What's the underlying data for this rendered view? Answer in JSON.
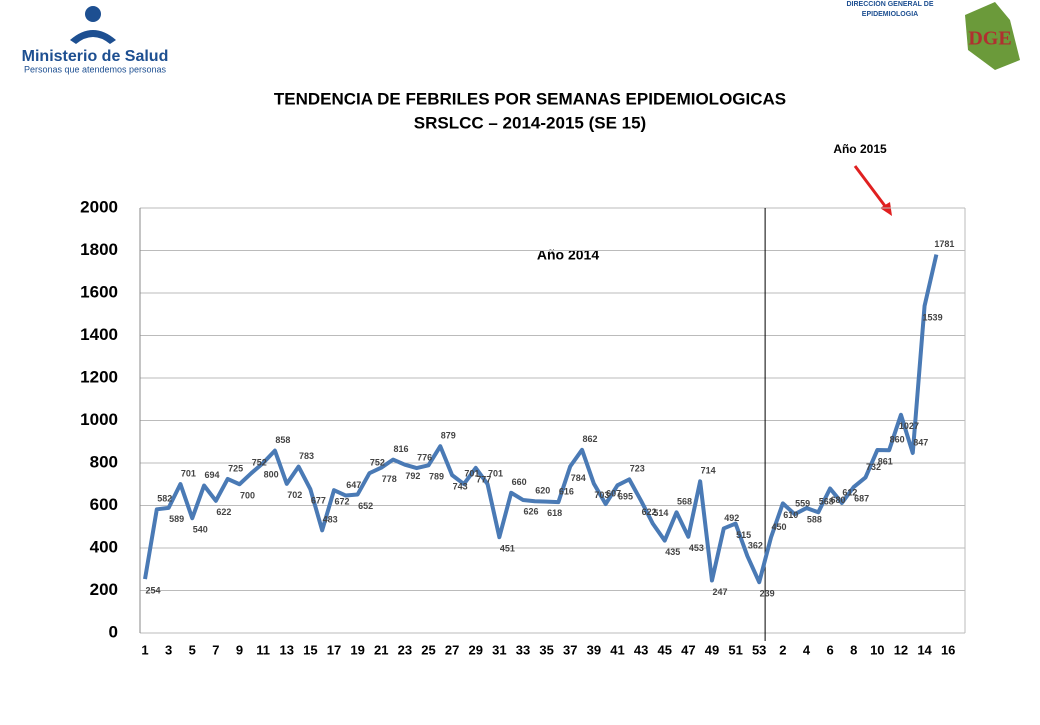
{
  "header": {
    "org": "Ministerio de Salud",
    "tagline": "Personas que atendemos personas",
    "dept": "DIRECCIÓN GENERAL DE EPIDEMIOLOGIA",
    "logo": "DGE"
  },
  "chart_data": {
    "type": "line",
    "title": [
      "TENDENCIA DE FEBRILES POR SEMANAS EPIDEMIOLOGICAS",
      "SRSLCC – 2014-2015 (SE 15)"
    ],
    "annotations": [
      "Año 2014",
      "Año 2015"
    ],
    "categories": [
      "1",
      null,
      "3",
      null,
      "5",
      null,
      "7",
      null,
      "9",
      null,
      "11",
      null,
      "13",
      null,
      "15",
      null,
      "17",
      null,
      "19",
      null,
      "21",
      null,
      "23",
      null,
      "25",
      null,
      "27",
      null,
      "29",
      null,
      "31",
      null,
      "33",
      null,
      "35",
      null,
      "37",
      null,
      "39",
      null,
      "41",
      null,
      "43",
      null,
      "45",
      null,
      "47",
      null,
      "49",
      null,
      "51",
      null,
      "53",
      null,
      "2",
      null,
      "4",
      null,
      "6",
      null,
      "8",
      null,
      "10",
      null,
      "12",
      null,
      "14",
      null,
      "16",
      null
    ],
    "series": [
      {
        "name": "Febriles",
        "color": "#4a7ab5",
        "values": [
          254,
          582,
          589,
          701,
          540,
          694,
          622,
          725,
          700,
          752,
          800,
          858,
          702,
          783,
          677,
          483,
          672,
          647,
          652,
          752,
          778,
          816,
          792,
          776,
          789,
          879,
          743,
          701,
          777,
          701,
          451,
          660,
          626,
          620,
          618,
          616,
          784,
          862,
          703,
          607,
          695,
          723,
          622,
          514,
          435,
          568,
          453,
          714,
          247,
          492,
          515,
          362,
          239,
          450,
          610,
          559,
          588,
          568,
          680,
          612,
          687,
          732,
          861,
          860,
          1027,
          847,
          1539,
          1781,
          null,
          null
        ]
      }
    ],
    "ylim": [
      0,
      2000
    ],
    "yticks": [
      0,
      200,
      400,
      600,
      800,
      1000,
      1200,
      1400,
      1600,
      1800,
      2000
    ],
    "grid": true
  }
}
